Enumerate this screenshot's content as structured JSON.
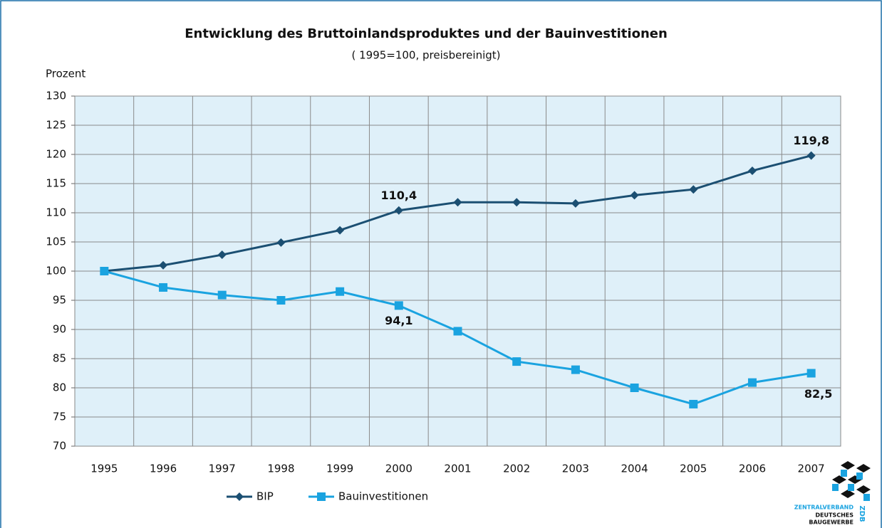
{
  "chart_data": {
    "type": "line",
    "title": "Entwicklung des Bruttoinlandsproduktes und der Bauinvestitionen",
    "subtitle": "( 1995=100, preisbereinigt)",
    "y_label": "Prozent",
    "categories": [
      "1995",
      "1996",
      "1997",
      "1998",
      "1999",
      "2000",
      "2001",
      "2002",
      "2003",
      "2004",
      "2005",
      "2006",
      "2007"
    ],
    "series": [
      {
        "name": "BIP",
        "color": "#1b4f72",
        "marker": "diamond",
        "values": [
          100,
          101,
          102.8,
          104.9,
          107,
          110.4,
          111.8,
          111.8,
          111.6,
          113,
          114,
          117.2,
          119.8
        ],
        "value_labels": [
          null,
          null,
          null,
          null,
          null,
          "110,4",
          null,
          null,
          null,
          null,
          null,
          null,
          "119,8"
        ]
      },
      {
        "name": "Bauinvestitionen",
        "color": "#1aa3e0",
        "marker": "square",
        "values": [
          100,
          97.2,
          95.9,
          95,
          96.5,
          94.1,
          89.7,
          84.5,
          83.1,
          80,
          77.2,
          80.9,
          82.5
        ],
        "value_labels": [
          null,
          null,
          null,
          null,
          null,
          "94,1",
          null,
          null,
          null,
          null,
          null,
          null,
          "82,5"
        ]
      }
    ],
    "ylim": [
      70,
      130
    ],
    "yticks": [
      70,
      75,
      80,
      85,
      90,
      95,
      100,
      105,
      110,
      115,
      120,
      125,
      130
    ],
    "grid": true,
    "legend": "bottom-left"
  },
  "logo": {
    "name": "ZENTRALVERBAND",
    "line2": "DEUTSCHES",
    "line3": "BAUGEWERBE",
    "short": "ZDB"
  }
}
